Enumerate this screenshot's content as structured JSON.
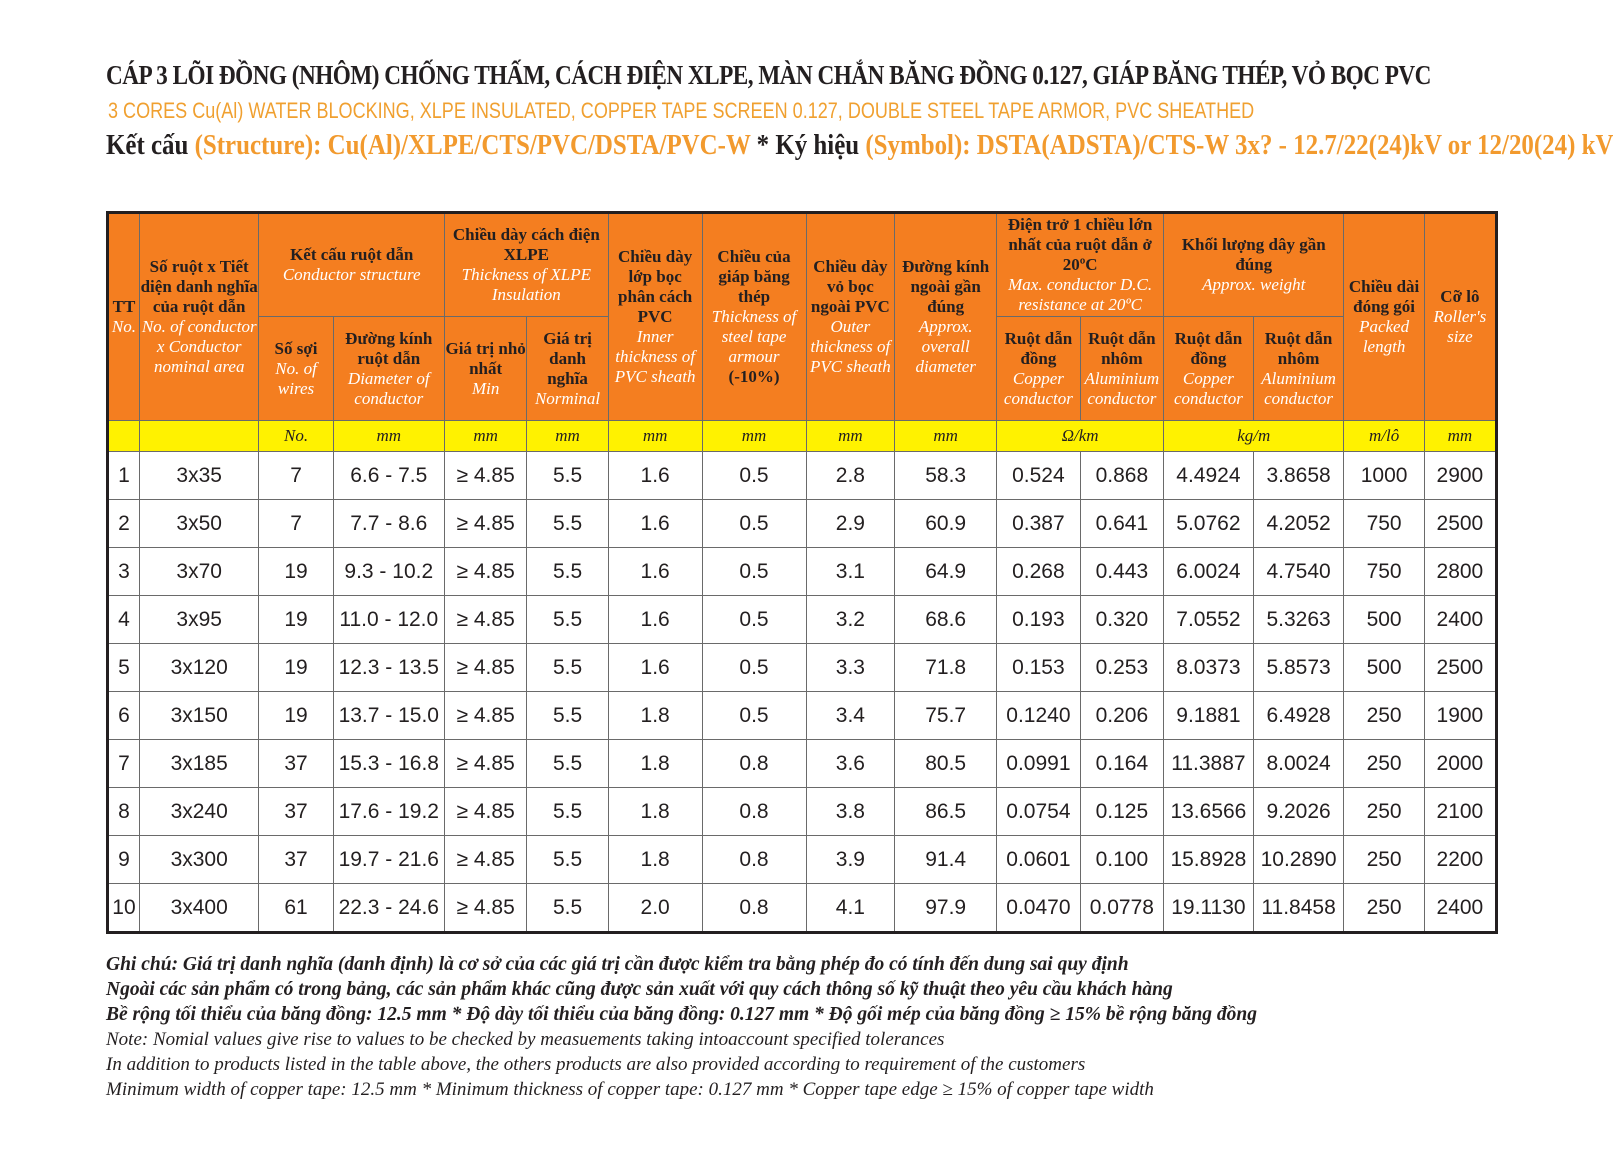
{
  "title_vi": "CÁP 3 LÕI ĐỒNG (NHÔM) CHỐNG THẤM, CÁCH ĐIỆN XLPE, MÀN CHẮN BĂNG ĐỒNG 0.127, GIÁP BĂNG THÉP,  VỎ BỌC PVC",
  "title_en": "3 CORES Cu(Al) WATER BLOCKING, XLPE INSULATED, COPPER TAPE SCREEN 0.127, DOUBLE STEEL TAPE ARMOR,  PVC SHEATHED",
  "structure_line": {
    "label1": "Kết cấu",
    "value1": "(Structure): Cu(Al)/XLPE/CTS/PVC/DSTA/PVC-W",
    "sep": " * ",
    "label2": "Ký hiệu",
    "value2": "(Symbol): DSTA(ADSTA)/CTS-W 3x? - 12.7/22(24)kV or 12/20(24) kV"
  },
  "colors": {
    "header_orange": "#f47e20",
    "unit_yellow": "#fff200",
    "title_orange": "#f29a2e"
  },
  "headers": {
    "tt": {
      "vi": "TT",
      "en": "No."
    },
    "area": {
      "vi": "Số ruột x Tiết diện danh nghĩa của ruột dẫn",
      "en": "No. of conductor x Conductor nominal area"
    },
    "conductor_structure": {
      "vi": "Kết cấu ruột dẫn",
      "en": "Conductor structure"
    },
    "wires": {
      "vi": "Số sợi",
      "en": "No. of wires"
    },
    "conductor_diameter": {
      "vi": "Đường kính ruột dẫn",
      "en": "Diameter of conductor"
    },
    "xlpe_thickness": {
      "vi": "Chiều dày cách điện XLPE",
      "en": "Thickness of XLPE Insulation"
    },
    "xlpe_min": {
      "vi": "Giá trị nhỏ nhất",
      "en": "Min"
    },
    "xlpe_nominal": {
      "vi": "Giá trị danh nghĩa",
      "en": "Norminal"
    },
    "inner_pvc": {
      "vi": "Chiều dày lớp bọc phân cách PVC",
      "en": "Inner thickness of PVC sheath"
    },
    "armour": {
      "vi": "Chiều của giáp băng thép",
      "en": "Thickness of steel tape armour",
      "extra": "(-10%)"
    },
    "outer_pvc": {
      "vi": "Chiều dày vỏ bọc ngoài PVC",
      "en": "Outer thickness of PVC sheath"
    },
    "overall_diameter": {
      "vi": "Đường kính ngoài gần đúng",
      "en": "Approx. overall diameter"
    },
    "resistance": {
      "vi": "Điện trở 1 chiều lớn nhất của ruột dẫn ở 20ºC",
      "en": "Max. conductor D.C. resistance at 20ºC"
    },
    "res_cu": {
      "vi": "Ruột dẫn đồng",
      "en": "Copper conductor"
    },
    "res_al": {
      "vi": "Ruột dẫn nhôm",
      "en": "Aluminium conductor"
    },
    "weight": {
      "vi": "Khối lượng dây gần đúng",
      "en": "Approx. weight"
    },
    "w_cu": {
      "vi": "Ruột dẫn đồng",
      "en": "Copper conductor"
    },
    "w_al": {
      "vi": "Ruột dẫn nhôm",
      "en": "Aluminium conductor"
    },
    "packed": {
      "vi": "Chiều dài đóng gói",
      "en": "Packed length"
    },
    "roller": {
      "vi": "Cỡ lô",
      "en": "Roller's size"
    }
  },
  "units": {
    "wires": "No.",
    "diameter": "mm",
    "xlpe_min": "mm",
    "xlpe_nom": "mm",
    "inner": "mm",
    "armour": "mm",
    "outer": "mm",
    "overall": "mm",
    "resistance": "Ω/km",
    "weight": "kg/m",
    "packed": "m/lô",
    "roller": "mm"
  },
  "rows": [
    [
      "1",
      "3x35",
      "7",
      "6.6 - 7.5",
      "≥ 4.85",
      "5.5",
      "1.6",
      "0.5",
      "2.8",
      "58.3",
      "0.524",
      "0.868",
      "4.4924",
      "3.8658",
      "1000",
      "2900"
    ],
    [
      "2",
      "3x50",
      "7",
      "7.7 - 8.6",
      "≥ 4.85",
      "5.5",
      "1.6",
      "0.5",
      "2.9",
      "60.9",
      "0.387",
      "0.641",
      "5.0762",
      "4.2052",
      "750",
      "2500"
    ],
    [
      "3",
      "3x70",
      "19",
      "9.3 - 10.2",
      "≥ 4.85",
      "5.5",
      "1.6",
      "0.5",
      "3.1",
      "64.9",
      "0.268",
      "0.443",
      "6.0024",
      "4.7540",
      "750",
      "2800"
    ],
    [
      "4",
      "3x95",
      "19",
      "11.0 - 12.0",
      "≥ 4.85",
      "5.5",
      "1.6",
      "0.5",
      "3.2",
      "68.6",
      "0.193",
      "0.320",
      "7.0552",
      "5.3263",
      "500",
      "2400"
    ],
    [
      "5",
      "3x120",
      "19",
      "12.3 - 13.5",
      "≥ 4.85",
      "5.5",
      "1.6",
      "0.5",
      "3.3",
      "71.8",
      "0.153",
      "0.253",
      "8.0373",
      "5.8573",
      "500",
      "2500"
    ],
    [
      "6",
      "3x150",
      "19",
      "13.7 - 15.0",
      "≥ 4.85",
      "5.5",
      "1.8",
      "0.5",
      "3.4",
      "75.7",
      "0.1240",
      "0.206",
      "9.1881",
      "6.4928",
      "250",
      "1900"
    ],
    [
      "7",
      "3x185",
      "37",
      "15.3 - 16.8",
      "≥ 4.85",
      "5.5",
      "1.8",
      "0.8",
      "3.6",
      "80.5",
      "0.0991",
      "0.164",
      "11.3887",
      "8.0024",
      "250",
      "2000"
    ],
    [
      "8",
      "3x240",
      "37",
      "17.6 - 19.2",
      "≥ 4.85",
      "5.5",
      "1.8",
      "0.8",
      "3.8",
      "86.5",
      "0.0754",
      "0.125",
      "13.6566",
      "9.2026",
      "250",
      "2100"
    ],
    [
      "9",
      "3x300",
      "37",
      "19.7 - 21.6",
      "≥ 4.85",
      "5.5",
      "1.8",
      "0.8",
      "3.9",
      "91.4",
      "0.0601",
      "0.100",
      "15.8928",
      "10.2890",
      "250",
      "2200"
    ],
    [
      "10",
      "3x400",
      "61",
      "22.3 - 24.6",
      "≥ 4.85",
      "5.5",
      "2.0",
      "0.8",
      "4.1",
      "97.9",
      "0.0470",
      "0.0778",
      "19.1130",
      "11.8458",
      "250",
      "2400"
    ]
  ],
  "notes": {
    "vi": [
      "Ghi chú: Giá trị danh nghĩa (danh định) là cơ sở của các giá trị cần được kiểm tra bằng phép đo có tính đến dung sai quy định",
      "Ngoài các sản phẩm có trong bảng, các sản phẩm khác cũng được sản xuất với quy cách thông số kỹ thuật theo yêu cầu khách hàng",
      "Bề rộng tối thiểu của băng đồng: 12.5 mm * Độ dày tối thiểu của băng đồng: 0.127 mm * Độ gối mép của băng đồng ≥ 15% bề rộng băng đồng"
    ],
    "en": [
      "Note: Nomial values give rise to values to be checked by measuements taking intoaccount specified tolerances",
      "In addition to products listed in the table above, the others products are also provided according to requirement of the customers",
      "Minimum width of copper tape: 12.5 mm * Minimum thickness of copper tape: 0.127 mm * Copper tape edge ≥ 15% of copper tape width"
    ]
  }
}
